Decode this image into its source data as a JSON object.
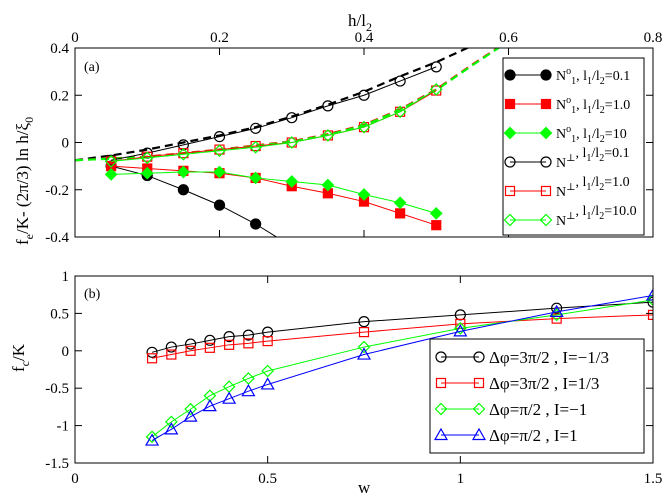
{
  "chart_data": [
    {
      "type": "line",
      "panel_label": "(a)",
      "xlabel": "",
      "ylabel": "f_e/K - (2π/3) ln h/ξ_0",
      "ylabel_parts": {
        "main": "f",
        "sub1": "e",
        "mid": "/K- (2π/3) ln h/ξ",
        "sub2": "0"
      },
      "top_axis_label": "h/l_2",
      "top_axis_label_parts": {
        "main": "h/l",
        "sub": "2"
      },
      "x_range": [
        0,
        0.8
      ],
      "xlim": [
        0,
        0.8
      ],
      "ylim": [
        -0.4,
        0.4
      ],
      "x_ticks": [
        "0",
        "0.2",
        "0.4",
        "0.6",
        "0.8"
      ],
      "y_ticks": [
        "-0.4",
        "-0.2",
        "0",
        "0.2",
        "0.4"
      ],
      "grid": false,
      "legend_position": "right",
      "series": [
        {
          "name": "N^o_1, l_1/l_2=0.1",
          "label": {
            "a": "N",
            "sup": "o",
            "b": "1",
            "c": ", l",
            "d": "1",
            "e": "/l",
            "f": "2",
            "g": "=0.1"
          },
          "color": "#000000",
          "marker": "filled-circle",
          "x": [
            0.05,
            0.1,
            0.15,
            0.2,
            0.25,
            0.3
          ],
          "y": [
            -0.1,
            -0.14,
            -0.2,
            -0.265,
            -0.345,
            -0.44
          ]
        },
        {
          "name": "N^o_1, l_1/l_2=1.0",
          "label": {
            "a": "N",
            "sup": "o",
            "b": "1",
            "c": ", l",
            "d": "1",
            "e": "/l",
            "f": "2",
            "g": "=1.0"
          },
          "color": "#ff0000",
          "marker": "filled-square",
          "x": [
            0.05,
            0.1,
            0.15,
            0.2,
            0.25,
            0.3,
            0.35,
            0.4,
            0.45,
            0.5
          ],
          "y": [
            -0.1,
            -0.11,
            -0.12,
            -0.13,
            -0.15,
            -0.185,
            -0.215,
            -0.25,
            -0.3,
            -0.35
          ]
        },
        {
          "name": "N^o_1, l_1/l_2=10",
          "label": {
            "a": "N",
            "sup": "o",
            "b": "1",
            "c": ", l",
            "d": "1",
            "e": "/l",
            "f": "2",
            "g": "=10"
          },
          "color": "#00ff00",
          "marker": "filled-diamond",
          "x": [
            0.05,
            0.1,
            0.15,
            0.2,
            0.25,
            0.3,
            0.35,
            0.4,
            0.45,
            0.5
          ],
          "y": [
            -0.135,
            -0.13,
            -0.125,
            -0.125,
            -0.15,
            -0.165,
            -0.18,
            -0.22,
            -0.255,
            -0.3
          ]
        },
        {
          "name": "N^⊥, l_1/l_2=0.1",
          "label": {
            "a": "N",
            "sup": "⊥",
            "b": "",
            "c": ", l",
            "d": "1",
            "e": "/l",
            "f": "2",
            "g": "=0.1"
          },
          "color": "#000000",
          "marker": "open-circle",
          "x": [
            0.05,
            0.1,
            0.15,
            0.2,
            0.25,
            0.3,
            0.35,
            0.4,
            0.45,
            0.5
          ],
          "y": [
            -0.075,
            -0.045,
            -0.01,
            0.025,
            0.06,
            0.105,
            0.155,
            0.2,
            0.26,
            0.32
          ]
        },
        {
          "name": "N^⊥, l_1/l_2=1.0",
          "label": {
            "a": "N",
            "sup": "⊥",
            "b": "",
            "c": ", l",
            "d": "1",
            "e": "/l",
            "f": "2",
            "g": "=1.0"
          },
          "color": "#ff0000",
          "marker": "open-square",
          "x": [
            0.05,
            0.1,
            0.15,
            0.2,
            0.25,
            0.3,
            0.35,
            0.4,
            0.45,
            0.5
          ],
          "y": [
            -0.08,
            -0.06,
            -0.045,
            -0.03,
            -0.015,
            0.0,
            0.03,
            0.065,
            0.13,
            0.22
          ]
        },
        {
          "name": "N^⊥, l_1/l_2=10.0",
          "label": {
            "a": "N",
            "sup": "⊥",
            "b": "",
            "c": ", l",
            "d": "1",
            "e": "/l",
            "f": "2",
            "g": "=10.0"
          },
          "color": "#00ff00",
          "marker": "open-diamond",
          "x": [
            0.05,
            0.1,
            0.15,
            0.2,
            0.25,
            0.3,
            0.35,
            0.4,
            0.45,
            0.5
          ],
          "y": [
            -0.08,
            -0.065,
            -0.05,
            -0.035,
            -0.02,
            0.0,
            0.03,
            0.065,
            0.13,
            0.225
          ]
        }
      ],
      "curves": [
        {
          "style": "dashed",
          "color": "#000000",
          "x": [
            0.0,
            0.05,
            0.1,
            0.15,
            0.2,
            0.25,
            0.3,
            0.35,
            0.4,
            0.45,
            0.5,
            0.55,
            0.6
          ],
          "y": [
            -0.075,
            -0.055,
            -0.03,
            0.0,
            0.03,
            0.065,
            0.11,
            0.16,
            0.215,
            0.28,
            0.34,
            0.41,
            0.48
          ]
        },
        {
          "style": "dashed",
          "color": "#ff0000",
          "x": [
            0.0,
            0.1,
            0.2,
            0.3,
            0.35,
            0.4,
            0.45,
            0.5,
            0.55,
            0.6
          ],
          "y": [
            -0.075,
            -0.06,
            -0.03,
            0.005,
            0.035,
            0.075,
            0.14,
            0.225,
            0.33,
            0.43
          ]
        },
        {
          "style": "dashed",
          "color": "#00ff00",
          "x": [
            0.0,
            0.1,
            0.2,
            0.3,
            0.35,
            0.4,
            0.45,
            0.5,
            0.55,
            0.6
          ],
          "y": [
            -0.075,
            -0.062,
            -0.032,
            0.003,
            0.032,
            0.072,
            0.137,
            0.222,
            0.327,
            0.428
          ]
        }
      ]
    },
    {
      "type": "line",
      "panel_label": "(b)",
      "xlabel": "w",
      "ylabel": "f_c/K",
      "ylabel_parts": {
        "main": "f",
        "sub": "c",
        "rest": "/K"
      },
      "xlim": [
        0,
        1.5
      ],
      "ylim": [
        -1.5,
        1
      ],
      "x_ticks": [
        "0",
        "0.5",
        "1",
        "1.5"
      ],
      "y_ticks": [
        "-1.5",
        "-1",
        "-0.5",
        "0",
        "0.5",
        "1"
      ],
      "grid": false,
      "legend_position": "bottom-right",
      "series": [
        {
          "name": "Δφ=3π/2 , I=−1/3",
          "color": "#000000",
          "marker": "open-circle",
          "x": [
            0.2,
            0.25,
            0.3,
            0.35,
            0.4,
            0.45,
            0.5,
            0.75,
            1.0,
            1.25,
            1.5
          ],
          "y": [
            -0.02,
            0.05,
            0.09,
            0.14,
            0.19,
            0.21,
            0.25,
            0.39,
            0.48,
            0.57,
            0.65
          ]
        },
        {
          "name": "Δφ=3π/2 , I=1/3",
          "color": "#ff0000",
          "marker": "open-square",
          "x": [
            0.2,
            0.25,
            0.3,
            0.35,
            0.4,
            0.45,
            0.5,
            0.75,
            1.0,
            1.25,
            1.5
          ],
          "y": [
            -0.1,
            -0.05,
            0.0,
            0.04,
            0.08,
            0.1,
            0.13,
            0.25,
            0.36,
            0.43,
            0.48
          ]
        },
        {
          "name": "Δφ=π/2 , I=−1",
          "color": "#00ff00",
          "marker": "open-diamond",
          "x": [
            0.2,
            0.25,
            0.3,
            0.35,
            0.4,
            0.45,
            0.5,
            0.75,
            1.0,
            1.25,
            1.5
          ],
          "y": [
            -1.15,
            -0.95,
            -0.78,
            -0.6,
            -0.48,
            -0.37,
            -0.27,
            0.05,
            0.3,
            0.48,
            0.68
          ]
        },
        {
          "name": "Δφ=π/2 , I=1",
          "color": "#0000ff",
          "marker": "open-triangle",
          "x": [
            0.2,
            0.25,
            0.3,
            0.35,
            0.4,
            0.45,
            0.5,
            0.75,
            1.0,
            1.25,
            1.5
          ],
          "y": [
            -1.2,
            -1.05,
            -0.88,
            -0.74,
            -0.64,
            -0.54,
            -0.45,
            -0.05,
            0.26,
            0.52,
            0.74
          ]
        }
      ]
    }
  ]
}
